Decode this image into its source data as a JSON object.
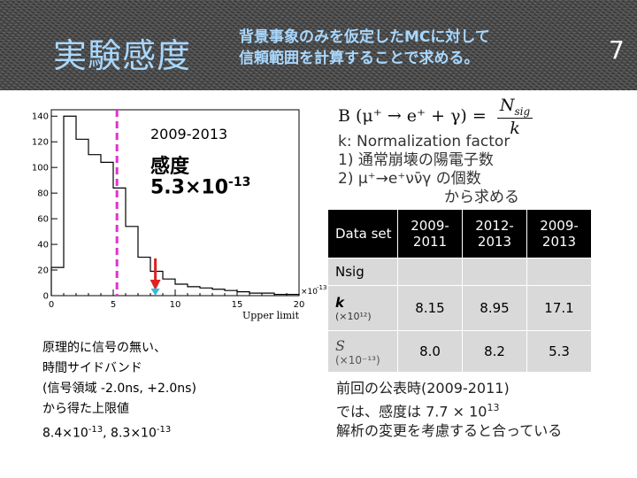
{
  "header": {
    "title": "実験感度",
    "subtitle_line1": "背景事象のみを仮定したMCに対して",
    "subtitle_line2": "信頼範囲を計算することで求める。",
    "page_number": "7",
    "title_color": "#a8d8ff"
  },
  "histogram": {
    "period": "2009-2013",
    "sensitivity_label": "感度",
    "sensitivity_mantissa": "5.3×10",
    "sensitivity_exponent": "-13",
    "x_axis_label": "Upper limit",
    "x_scale_label": "×10",
    "x_scale_exponent": "-13",
    "sensitivity_marker_color": "#dd33cc",
    "arrow_color": "#dd2222",
    "marker_color": "#33bbdd",
    "chart_data": {
      "type": "bar",
      "xlim": [
        0,
        20
      ],
      "ylim": [
        0,
        145
      ],
      "x_ticks": [
        "0",
        "5",
        "10",
        "15",
        "20"
      ],
      "y_ticks": [
        "0",
        "20",
        "40",
        "60",
        "80",
        "100",
        "120",
        "140"
      ],
      "bin_width": 1,
      "bin_starts": [
        0,
        1,
        2,
        3,
        4,
        5,
        6,
        7,
        8,
        9,
        10,
        11,
        12,
        13,
        14,
        15,
        16,
        17,
        18,
        19
      ],
      "values": [
        22,
        140,
        122,
        110,
        104,
        84,
        54,
        30,
        19,
        13,
        9,
        7,
        6,
        5,
        4,
        3,
        2,
        2,
        1,
        1
      ],
      "sensitivity_line_x": 5.3,
      "marker_x": 8.4
    }
  },
  "formula": {
    "lhs": "B (μ⁺ → e⁺ + γ) =",
    "numerator": "N",
    "numerator_sub": "sig",
    "denominator": "k"
  },
  "k_note": {
    "line1": "k: Normalization factor",
    "line2": "1) 通常崩壊の陽電子数",
    "line3": "2) μ⁺→e⁺νν̄γ の個数",
    "line4": "から求める"
  },
  "table": {
    "headers": [
      "Data set",
      "2009-2011",
      "2012-2013",
      "2009-2013"
    ],
    "nsig_label": "Nsig",
    "k_label": "k",
    "k_unit": "(×10¹²)",
    "k_values": [
      "8.15",
      "8.95",
      "17.1"
    ],
    "s_label": "S",
    "s_unit": "(×10⁻¹³)",
    "s_values": [
      "8.0",
      "8.2",
      "5.3"
    ]
  },
  "previous": {
    "line1": "前回の公表時(2009-2011)",
    "line2": "では、感度は 7.7 × 10",
    "line2_exp": "13",
    "line3": "解析の変更を考慮すると合っている"
  },
  "principle": {
    "line1": "原理的に信号の無い、",
    "line2": "時間サイドバンド",
    "line3": "(信号領域 -2.0ns, +2.0ns)",
    "line4": "から得た上限値",
    "line5a": "8.4×10",
    "line5a_exp": "-13",
    "line5b": ", 8.3×10",
    "line5b_exp": "-13"
  }
}
